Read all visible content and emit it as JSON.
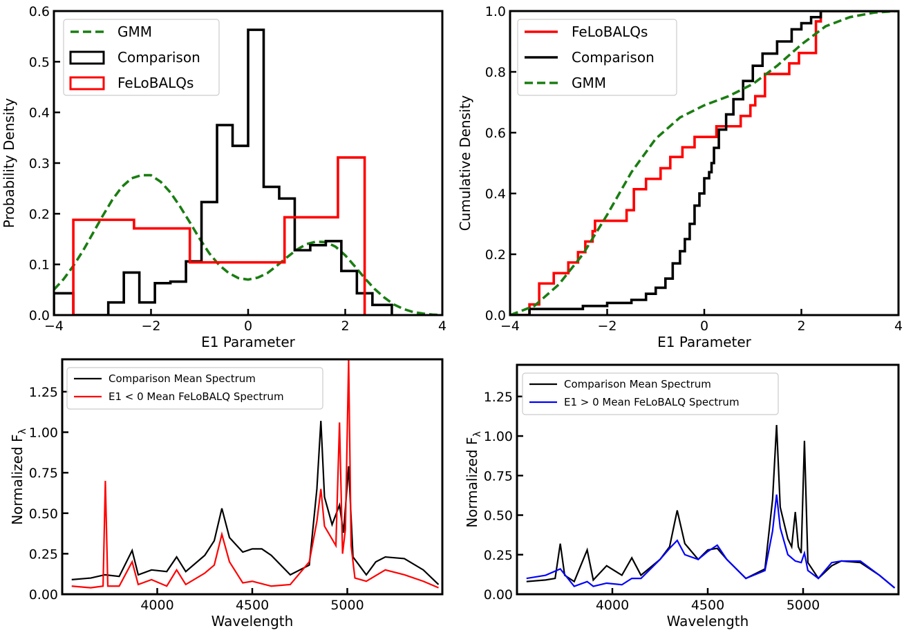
{
  "chart_data": [
    {
      "type": "histogram",
      "xlabel": "E1 Parameter",
      "ylabel": "Probability Density",
      "xlim": [
        -4,
        4
      ],
      "ylim": [
        0,
        0.6
      ],
      "xticks": [
        -4,
        -2,
        0,
        2,
        4
      ],
      "xtick_labels": [
        "−4",
        "−2",
        "0",
        "2",
        "4"
      ],
      "yticks": [
        0,
        0.1,
        0.2,
        0.3,
        0.4,
        0.5,
        0.6
      ],
      "ytick_labels": [
        "0.0",
        "0.1",
        "0.2",
        "0.3",
        "0.4",
        "0.5",
        "0.6"
      ],
      "legend_position": "upper-left",
      "colors": {
        "gmm": "#1a7d12",
        "comparison": "#000000",
        "felobalqs": "#ff0000"
      },
      "series": [
        {
          "name": "GMM",
          "kind": "curve",
          "color": "#1a7d12",
          "dashed": true,
          "x": [
            -4.0,
            -3.8,
            -3.6,
            -3.4,
            -3.2,
            -3.0,
            -2.8,
            -2.6,
            -2.4,
            -2.2,
            -2.0,
            -1.8,
            -1.6,
            -1.4,
            -1.2,
            -1.0,
            -0.8,
            -0.6,
            -0.4,
            -0.2,
            0.0,
            0.2,
            0.4,
            0.6,
            0.8,
            1.0,
            1.2,
            1.4,
            1.6,
            1.8,
            2.0,
            2.2,
            2.4,
            2.6,
            2.8,
            3.0,
            3.2,
            3.4,
            3.6,
            3.8,
            4.0
          ],
          "y": [
            0.05,
            0.071,
            0.097,
            0.127,
            0.161,
            0.195,
            0.227,
            0.253,
            0.27,
            0.276,
            0.276,
            0.263,
            0.242,
            0.214,
            0.183,
            0.151,
            0.122,
            0.099,
            0.083,
            0.073,
            0.07,
            0.074,
            0.083,
            0.098,
            0.114,
            0.129,
            0.14,
            0.145,
            0.144,
            0.135,
            0.118,
            0.096,
            0.073,
            0.052,
            0.035,
            0.021,
            0.012,
            0.006,
            0.003,
            0.001,
            0.0
          ]
        },
        {
          "name": "Comparison",
          "kind": "step",
          "color": "#000000",
          "edges": [
            -4.0,
            -3.6,
            -3.2,
            -2.88,
            -2.56,
            -2.24,
            -1.92,
            -1.6,
            -1.28,
            -0.96,
            -0.64,
            -0.32,
            0.0,
            0.32,
            0.64,
            0.96,
            1.28,
            1.6,
            1.92,
            2.24,
            2.56,
            2.96
          ],
          "heights": [
            0.043,
            0.0,
            0.0,
            0.025,
            0.084,
            0.025,
            0.063,
            0.066,
            0.106,
            0.223,
            0.375,
            0.334,
            0.563,
            0.253,
            0.23,
            0.128,
            0.138,
            0.146,
            0.087,
            0.043,
            0.02
          ]
        },
        {
          "name": "FeLoBALQs",
          "kind": "step",
          "color": "#ff0000",
          "edges": [
            -3.6,
            -2.35,
            -1.2,
            0.75,
            1.85,
            2.4
          ],
          "heights": [
            0.188,
            0.171,
            0.104,
            0.193,
            0.311
          ]
        }
      ]
    },
    {
      "type": "line",
      "xlabel": "E1 Parameter",
      "ylabel": "Cumulative Density",
      "xlim": [
        -4,
        4
      ],
      "ylim": [
        0,
        1.0
      ],
      "xticks": [
        -4,
        -2,
        0,
        2,
        4
      ],
      "xtick_labels": [
        "−4",
        "−2",
        "0",
        "2",
        "4"
      ],
      "yticks": [
        0,
        0.2,
        0.4,
        0.6,
        0.8,
        1.0
      ],
      "ytick_labels": [
        "0.0",
        "0.2",
        "0.4",
        "0.6",
        "0.8",
        "1.0"
      ],
      "legend_position": "upper-left",
      "series": [
        {
          "name": "FeLoBALQs",
          "kind": "ecdf",
          "color": "#ff0000",
          "x": [
            -3.6,
            -3.4,
            -3.1,
            -2.8,
            -2.6,
            -2.45,
            -2.3,
            -2.25,
            -1.6,
            -1.45,
            -1.2,
            -0.9,
            -0.7,
            -0.45,
            -0.2,
            0.25,
            0.75,
            0.95,
            1.05,
            1.25,
            1.75,
            1.95,
            2.3,
            2.4
          ],
          "y": [
            0.035,
            0.104,
            0.138,
            0.173,
            0.207,
            0.242,
            0.276,
            0.31,
            0.345,
            0.414,
            0.448,
            0.483,
            0.52,
            0.552,
            0.586,
            0.621,
            0.655,
            0.69,
            0.72,
            0.793,
            0.828,
            0.862,
            0.966,
            1.0
          ]
        },
        {
          "name": "Comparison",
          "kind": "ecdf",
          "color": "#000000",
          "x": [
            -3.6,
            -2.5,
            -2.0,
            -1.5,
            -1.2,
            -1.0,
            -0.8,
            -0.65,
            -0.5,
            -0.4,
            -0.3,
            -0.2,
            -0.1,
            0.0,
            0.1,
            0.15,
            0.2,
            0.3,
            0.45,
            0.6,
            0.8,
            1.0,
            1.2,
            1.5,
            1.8,
            2.0,
            2.2,
            2.4
          ],
          "y": [
            0.02,
            0.03,
            0.04,
            0.05,
            0.07,
            0.09,
            0.12,
            0.17,
            0.21,
            0.25,
            0.3,
            0.36,
            0.4,
            0.45,
            0.47,
            0.5,
            0.55,
            0.61,
            0.66,
            0.71,
            0.77,
            0.82,
            0.86,
            0.9,
            0.94,
            0.96,
            0.98,
            1.0
          ]
        },
        {
          "name": "GMM",
          "kind": "curve",
          "color": "#1a7d12",
          "dashed": true,
          "x": [
            -4.0,
            -3.5,
            -3.0,
            -2.5,
            -2.0,
            -1.5,
            -1.0,
            -0.5,
            0.0,
            0.5,
            1.0,
            1.5,
            2.0,
            2.5,
            3.0,
            3.5,
            4.0
          ],
          "y": [
            0.0,
            0.03,
            0.1,
            0.2,
            0.33,
            0.47,
            0.58,
            0.65,
            0.69,
            0.72,
            0.76,
            0.82,
            0.89,
            0.95,
            0.98,
            0.995,
            1.0
          ]
        }
      ]
    },
    {
      "type": "line",
      "xlabel": "Wavelength",
      "ylabel": "Normalized F",
      "ylabel_sub": "λ",
      "xlim": [
        3500,
        5500
      ],
      "ylim": [
        0,
        1.45
      ],
      "xticks": [
        4000,
        4500,
        5000
      ],
      "xtick_labels": [
        "4000",
        "4500",
        "5000"
      ],
      "yticks": [
        0,
        0.25,
        0.5,
        0.75,
        1.0,
        1.25
      ],
      "ytick_labels": [
        "0.00",
        "0.25",
        "0.50",
        "0.75",
        "1.00",
        "1.25"
      ],
      "legend_position": "upper-left",
      "series": [
        {
          "name": "Comparison Mean Spectrum",
          "color": "#000000",
          "x": [
            3550,
            3650,
            3725,
            3800,
            3868,
            3900,
            3970,
            4050,
            4102,
            4150,
            4250,
            4300,
            4340,
            4380,
            4450,
            4500,
            4550,
            4600,
            4700,
            4800,
            4840,
            4861,
            4880,
            4920,
            4959,
            4980,
            5007,
            5030,
            5100,
            5150,
            5200,
            5300,
            5400,
            5480
          ],
          "y": [
            0.09,
            0.1,
            0.12,
            0.11,
            0.27,
            0.12,
            0.15,
            0.14,
            0.23,
            0.14,
            0.24,
            0.33,
            0.53,
            0.35,
            0.26,
            0.28,
            0.28,
            0.24,
            0.12,
            0.18,
            0.65,
            1.07,
            0.6,
            0.43,
            0.55,
            0.38,
            0.79,
            0.23,
            0.12,
            0.2,
            0.23,
            0.22,
            0.15,
            0.06
          ]
        },
        {
          "name": "E1 < 0 Mean FeLoBALQ Spectrum",
          "color": "#ff0000",
          "x": [
            3550,
            3650,
            3715,
            3727,
            3740,
            3800,
            3868,
            3900,
            3970,
            4050,
            4102,
            4150,
            4250,
            4300,
            4340,
            4380,
            4450,
            4500,
            4600,
            4700,
            4800,
            4840,
            4861,
            4880,
            4940,
            4959,
            4975,
            4990,
            5007,
            5020,
            5040,
            5100,
            5200,
            5300,
            5400,
            5480
          ],
          "y": [
            0.05,
            0.04,
            0.05,
            0.7,
            0.05,
            0.05,
            0.2,
            0.06,
            0.09,
            0.05,
            0.15,
            0.06,
            0.13,
            0.18,
            0.37,
            0.2,
            0.07,
            0.08,
            0.05,
            0.06,
            0.2,
            0.45,
            0.65,
            0.42,
            0.3,
            1.06,
            0.25,
            0.4,
            1.45,
            0.3,
            0.1,
            0.08,
            0.15,
            0.12,
            0.08,
            0.04
          ]
        }
      ]
    },
    {
      "type": "line",
      "xlabel": "Wavelength",
      "ylabel": "Normalized F",
      "ylabel_sub": "λ",
      "xlim": [
        3500,
        5500
      ],
      "ylim": [
        0,
        1.45
      ],
      "xticks": [
        4000,
        4500,
        5000
      ],
      "xtick_labels": [
        "4000",
        "4500",
        "5000"
      ],
      "yticks": [
        0,
        0.25,
        0.5,
        0.75,
        1.0,
        1.25
      ],
      "ytick_labels": [
        "0.00",
        "0.25",
        "0.50",
        "0.75",
        "1.00",
        "1.25"
      ],
      "legend_position": "upper-left",
      "series": [
        {
          "name": "Comparison Mean Spectrum",
          "color": "#000000",
          "x": [
            3550,
            3650,
            3700,
            3727,
            3750,
            3800,
            3868,
            3900,
            3970,
            4050,
            4102,
            4150,
            4250,
            4300,
            4340,
            4380,
            4450,
            4500,
            4550,
            4600,
            4700,
            4800,
            4840,
            4861,
            4880,
            4920,
            4940,
            4959,
            4975,
            4990,
            5007,
            5025,
            5080,
            5150,
            5200,
            5300,
            5400,
            5480
          ],
          "y": [
            0.08,
            0.09,
            0.1,
            0.32,
            0.12,
            0.08,
            0.28,
            0.09,
            0.18,
            0.12,
            0.23,
            0.12,
            0.22,
            0.3,
            0.53,
            0.32,
            0.22,
            0.28,
            0.29,
            0.22,
            0.1,
            0.16,
            0.6,
            1.07,
            0.55,
            0.35,
            0.3,
            0.52,
            0.3,
            0.26,
            0.97,
            0.2,
            0.1,
            0.18,
            0.21,
            0.2,
            0.12,
            0.04
          ]
        },
        {
          "name": "E1 > 0 Mean FeLoBALQ Spectrum",
          "color": "#0000ff",
          "x": [
            3550,
            3650,
            3727,
            3800,
            3868,
            3900,
            3970,
            4050,
            4102,
            4150,
            4250,
            4300,
            4340,
            4380,
            4450,
            4500,
            4550,
            4600,
            4700,
            4800,
            4840,
            4861,
            4880,
            4920,
            4959,
            4990,
            5007,
            5025,
            5080,
            5150,
            5200,
            5300,
            5400,
            5480
          ],
          "y": [
            0.1,
            0.12,
            0.16,
            0.05,
            0.08,
            0.05,
            0.07,
            0.06,
            0.1,
            0.1,
            0.22,
            0.29,
            0.34,
            0.25,
            0.22,
            0.27,
            0.31,
            0.22,
            0.1,
            0.15,
            0.4,
            0.63,
            0.42,
            0.25,
            0.21,
            0.2,
            0.26,
            0.15,
            0.1,
            0.2,
            0.21,
            0.21,
            0.12,
            0.04
          ]
        }
      ]
    }
  ]
}
